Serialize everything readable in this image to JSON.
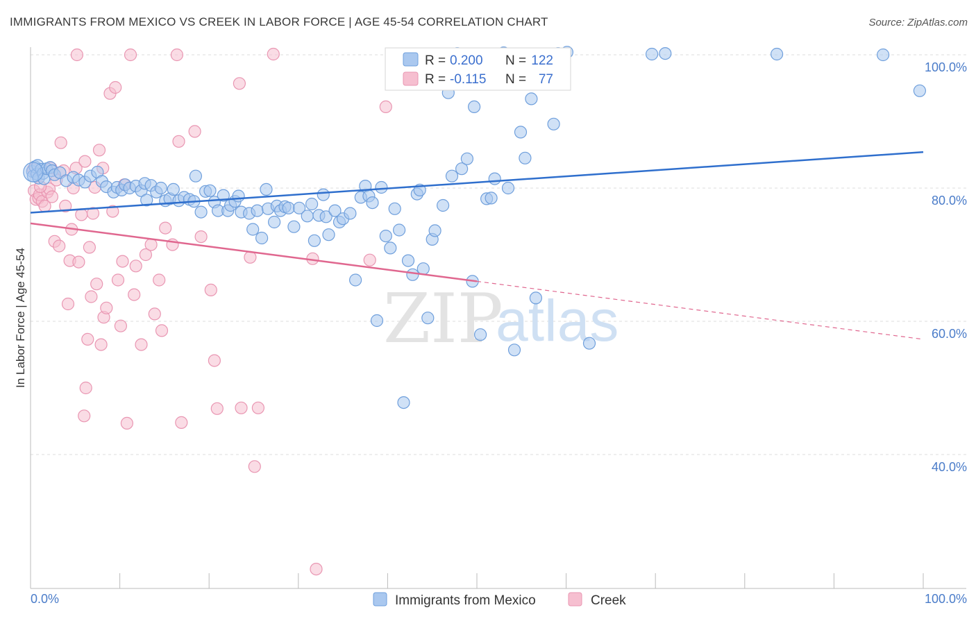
{
  "title": "IMMIGRANTS FROM MEXICO VS CREEK IN LABOR FORCE | AGE 45-54 CORRELATION CHART",
  "source": "Source: ZipAtlas.com",
  "watermark": {
    "part1": "ZIP",
    "part2": "atlas"
  },
  "colors": {
    "blue_fill": "#aac8ef",
    "blue_stroke": "#6f9fdc",
    "blue_line": "#2f6fcd",
    "pink_fill": "#f6bfd0",
    "pink_stroke": "#e996b2",
    "pink_line": "#e0678f",
    "grid": "#dddddd",
    "tick_text": "#4a7cc9"
  },
  "legend": {
    "rows": [
      {
        "r_label": "R =",
        "r_value": "0.200",
        "n_label": "N =",
        "n_value": "122"
      },
      {
        "r_label": "R =",
        "r_value": "-0.115",
        "n_label": "N =",
        "n_value": "77"
      }
    ]
  },
  "chart_data": {
    "type": "scatter",
    "title": "IMMIGRANTS FROM MEXICO VS CREEK IN LABOR FORCE | AGE 45-54 CORRELATION CHART",
    "xlabel": "",
    "ylabel": "In Labor Force | Age 45-54",
    "xlim": [
      0,
      100
    ],
    "ylim": [
      20,
      103
    ],
    "x_tick_labels": [
      "0.0%",
      "100.0%"
    ],
    "y_ticks": [
      40,
      60,
      80,
      100
    ],
    "y_tick_labels": [
      "40.0%",
      "60.0%",
      "80.0%",
      "100.0%"
    ],
    "grid": true,
    "series": [
      {
        "name": "Immigrants from Mexico",
        "R": 0.2,
        "N": 122,
        "trend": {
          "x0": 0,
          "y0": 76.3,
          "x1": 100,
          "y1": 85.4
        },
        "points": [
          [
            0.2,
            82.5
          ],
          [
            0.3,
            81.8
          ],
          [
            0.5,
            83.2
          ],
          [
            0.7,
            82.1
          ],
          [
            0.8,
            83.4
          ],
          [
            0.9,
            81.5
          ],
          [
            1.2,
            82.8
          ],
          [
            1.4,
            82.2
          ],
          [
            1.5,
            81.4
          ],
          [
            1.8,
            82.9
          ],
          [
            2.2,
            83.1
          ],
          [
            2.4,
            82.6
          ],
          [
            2.7,
            82.0
          ],
          [
            3.3,
            82.3
          ],
          [
            4.0,
            81.1
          ],
          [
            4.8,
            81.6
          ],
          [
            5.4,
            81.2
          ],
          [
            6.1,
            80.9
          ],
          [
            6.7,
            81.8
          ],
          [
            7.5,
            82.4
          ],
          [
            8.0,
            81.0
          ],
          [
            8.5,
            80.2
          ],
          [
            9.3,
            79.4
          ],
          [
            9.7,
            80.1
          ],
          [
            10.2,
            79.7
          ],
          [
            10.6,
            80.5
          ],
          [
            11.1,
            80.0
          ],
          [
            11.8,
            80.3
          ],
          [
            12.4,
            79.6
          ],
          [
            12.8,
            80.7
          ],
          [
            13.0,
            78.2
          ],
          [
            13.5,
            80.4
          ],
          [
            14.1,
            79.4
          ],
          [
            14.6,
            80.0
          ],
          [
            15.1,
            78.1
          ],
          [
            15.6,
            78.4
          ],
          [
            16.0,
            79.8
          ],
          [
            16.6,
            78.1
          ],
          [
            17.2,
            78.6
          ],
          [
            17.8,
            78.3
          ],
          [
            18.3,
            78.0
          ],
          [
            18.5,
            81.8
          ],
          [
            19.1,
            76.4
          ],
          [
            19.6,
            79.5
          ],
          [
            20.1,
            79.6
          ],
          [
            20.6,
            77.9
          ],
          [
            21.0,
            76.6
          ],
          [
            21.6,
            78.9
          ],
          [
            22.1,
            76.6
          ],
          [
            22.4,
            77.4
          ],
          [
            22.9,
            78.0
          ],
          [
            23.3,
            78.8
          ],
          [
            23.6,
            76.4
          ],
          [
            24.5,
            76.2
          ],
          [
            24.9,
            73.8
          ],
          [
            25.4,
            76.6
          ],
          [
            25.9,
            72.5
          ],
          [
            26.4,
            79.8
          ],
          [
            26.6,
            76.9
          ],
          [
            27.3,
            74.9
          ],
          [
            27.6,
            77.3
          ],
          [
            28.0,
            76.6
          ],
          [
            28.5,
            77.2
          ],
          [
            28.9,
            77.0
          ],
          [
            29.5,
            74.2
          ],
          [
            30.1,
            77.0
          ],
          [
            31.0,
            75.8
          ],
          [
            31.5,
            77.6
          ],
          [
            31.8,
            72.1
          ],
          [
            32.3,
            75.9
          ],
          [
            32.8,
            79.0
          ],
          [
            33.1,
            75.7
          ],
          [
            33.4,
            73.0
          ],
          [
            34.1,
            76.6
          ],
          [
            34.6,
            74.9
          ],
          [
            35.0,
            75.4
          ],
          [
            35.8,
            76.2
          ],
          [
            36.4,
            66.2
          ],
          [
            37.0,
            78.6
          ],
          [
            37.5,
            80.3
          ],
          [
            37.9,
            78.8
          ],
          [
            38.3,
            77.8
          ],
          [
            38.8,
            60.1
          ],
          [
            39.3,
            80.1
          ],
          [
            39.8,
            72.8
          ],
          [
            40.3,
            71.0
          ],
          [
            40.8,
            76.9
          ],
          [
            41.3,
            73.7
          ],
          [
            41.8,
            47.8
          ],
          [
            42.3,
            69.1
          ],
          [
            42.8,
            67.0
          ],
          [
            43.3,
            79.1
          ],
          [
            43.6,
            79.7
          ],
          [
            44.0,
            67.9
          ],
          [
            44.5,
            60.5
          ],
          [
            45.0,
            72.3
          ],
          [
            45.3,
            73.6
          ],
          [
            46.2,
            77.4
          ],
          [
            46.8,
            94.3
          ],
          [
            46.6,
            100.1
          ],
          [
            47.2,
            81.8
          ],
          [
            47.8,
            100.2
          ],
          [
            48.3,
            82.9
          ],
          [
            48.9,
            84.4
          ],
          [
            49.5,
            66.0
          ],
          [
            49.7,
            92.2
          ],
          [
            50.4,
            58.0
          ],
          [
            51.1,
            78.4
          ],
          [
            51.6,
            78.5
          ],
          [
            52.0,
            81.4
          ],
          [
            53.0,
            100.3
          ],
          [
            53.5,
            80.0
          ],
          [
            54.2,
            55.7
          ],
          [
            54.9,
            88.4
          ],
          [
            55.4,
            84.5
          ],
          [
            56.1,
            93.4
          ],
          [
            56.6,
            63.5
          ],
          [
            57.1,
            100.1
          ],
          [
            58.6,
            89.6
          ],
          [
            59.1,
            100.2
          ],
          [
            60.1,
            100.4
          ],
          [
            62.6,
            56.7
          ],
          [
            69.6,
            100.1
          ],
          [
            71.1,
            100.2
          ],
          [
            83.6,
            100.1
          ],
          [
            95.5,
            100.0
          ],
          [
            99.6,
            94.6
          ]
        ]
      },
      {
        "name": "Creek",
        "R": -0.115,
        "N": 77,
        "trend": {
          "x0": 0,
          "y0": 74.7,
          "x1": 50,
          "y1": 66.0,
          "dash_x1": 100,
          "dash_y1": 57.3
        },
        "points": [
          [
            0.3,
            82.8
          ],
          [
            0.4,
            79.6
          ],
          [
            0.6,
            78.3
          ],
          [
            0.9,
            78.5
          ],
          [
            1.0,
            79.0
          ],
          [
            1.3,
            78.0
          ],
          [
            1.6,
            77.3
          ],
          [
            1.9,
            79.4
          ],
          [
            2.1,
            79.9
          ],
          [
            2.4,
            78.7
          ],
          [
            2.7,
            72.0
          ],
          [
            2.9,
            81.2
          ],
          [
            3.2,
            71.3
          ],
          [
            3.4,
            86.8
          ],
          [
            3.7,
            82.6
          ],
          [
            3.9,
            77.3
          ],
          [
            4.2,
            62.6
          ],
          [
            4.4,
            69.1
          ],
          [
            4.6,
            73.8
          ],
          [
            4.8,
            80.0
          ],
          [
            5.2,
            100.0
          ],
          [
            5.4,
            68.9
          ],
          [
            5.7,
            76.0
          ],
          [
            6.0,
            45.8
          ],
          [
            6.2,
            50.0
          ],
          [
            6.4,
            57.3
          ],
          [
            6.6,
            71.1
          ],
          [
            6.8,
            63.7
          ],
          [
            7.0,
            76.2
          ],
          [
            7.2,
            80.1
          ],
          [
            7.4,
            65.6
          ],
          [
            7.7,
            85.7
          ],
          [
            7.9,
            56.5
          ],
          [
            8.2,
            60.6
          ],
          [
            8.5,
            62.0
          ],
          [
            8.9,
            94.2
          ],
          [
            9.2,
            76.5
          ],
          [
            9.5,
            95.1
          ],
          [
            9.8,
            66.2
          ],
          [
            10.1,
            59.3
          ],
          [
            10.3,
            69.0
          ],
          [
            10.8,
            44.7
          ],
          [
            11.2,
            100.0
          ],
          [
            11.6,
            64.0
          ],
          [
            11.8,
            68.3
          ],
          [
            12.4,
            56.5
          ],
          [
            12.9,
            70.0
          ],
          [
            13.5,
            71.5
          ],
          [
            13.9,
            61.1
          ],
          [
            14.4,
            66.2
          ],
          [
            14.7,
            58.6
          ],
          [
            15.1,
            74.0
          ],
          [
            15.9,
            71.5
          ],
          [
            16.4,
            100.0
          ],
          [
            16.6,
            87.0
          ],
          [
            16.9,
            44.8
          ],
          [
            18.4,
            88.5
          ],
          [
            19.1,
            72.7
          ],
          [
            20.2,
            64.7
          ],
          [
            20.6,
            54.1
          ],
          [
            20.9,
            46.9
          ],
          [
            23.4,
            95.7
          ],
          [
            23.6,
            47.0
          ],
          [
            24.6,
            69.6
          ],
          [
            25.1,
            38.2
          ],
          [
            25.5,
            47.0
          ],
          [
            27.2,
            100.1
          ],
          [
            31.6,
            69.4
          ],
          [
            32.0,
            22.8
          ],
          [
            38.0,
            69.2
          ],
          [
            39.8,
            92.2
          ],
          [
            2.3,
            83.0
          ],
          [
            1.1,
            80.2
          ],
          [
            5.1,
            83.0
          ],
          [
            6.1,
            84.0
          ],
          [
            8.1,
            83.0
          ],
          [
            10.5,
            80.5
          ]
        ]
      }
    ]
  }
}
